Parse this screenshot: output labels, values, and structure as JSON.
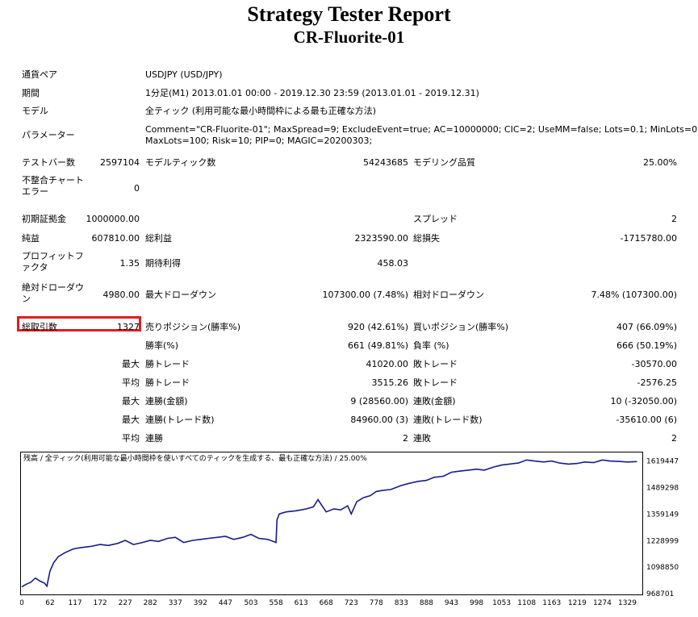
{
  "report": {
    "title": "Strategy Tester Report",
    "subtitle": "CR-Fluorite-01"
  },
  "info": {
    "symbol_label": "通貨ペア",
    "symbol_value": "USDJPY (USD/JPY)",
    "period_label": "期間",
    "period_value": "1分足(M1) 2013.01.01 00:00 - 2019.12.30 23:59 (2013.01.01 - 2019.12.31)",
    "model_label": "モデル",
    "model_value": "全ティック (利用可能な最小時間枠による最も正確な方法)",
    "params_label": "パラメーター",
    "params_line1": "Comment=\"CR-Fluorite-01\"; MaxSpread=9; ExcludeEvent=true; AC=10000000; CIC=2; UseMM=false; Lots=0.1; MinLots=0.01;",
    "params_line2": "MaxLots=100; Risk=10; PIP=0; MAGIC=20200303;"
  },
  "stats": {
    "bars_label": "テストバー数",
    "bars_value": "2597104",
    "ticks_label": "モデルティック数",
    "ticks_value": "54243685",
    "quality_label": "モデリング品質",
    "quality_value": "25.00%",
    "mismatch_label": "不整合チャート\nエラー",
    "mismatch_value": "0",
    "deposit_label": "初期証拠金",
    "deposit_value": "1000000.00",
    "spread_label": "スプレッド",
    "spread_value": "2",
    "net_label": "純益",
    "net_value": "607810.00",
    "gross_profit_label": "総利益",
    "gross_profit_value": "2323590.00",
    "gross_loss_label": "総損失",
    "gross_loss_value": "-1715780.00",
    "pf_label": "プロフィットフ\nァクタ",
    "pf_value": "1.35",
    "expected_label": "期待利得",
    "expected_value": "458.03",
    "abs_dd_label": "絶対ドローダウ\nン",
    "abs_dd_value": "4980.00",
    "max_dd_label": "最大ドローダウン",
    "max_dd_value": "107300.00 (7.48%)",
    "rel_dd_label": "相対ドローダウン",
    "rel_dd_value": "7.48% (107300.00)",
    "total_trades_label": "総取引数",
    "total_trades_value": "1327",
    "short_label": "売りポジション(勝率%)",
    "short_value": "920 (42.61%)",
    "long_label": "買いポジション(勝率%)",
    "long_value": "407 (66.09%)",
    "win_label": "勝率(%)",
    "win_value": "661 (49.81%)",
    "loss_label": "負率 (%)",
    "loss_value": "666 (50.19%)",
    "max_label": "最大",
    "avg_label": "平均",
    "largest_win_label": "勝トレード",
    "largest_win_value": "41020.00",
    "largest_loss_label": "敗トレード",
    "largest_loss_value": "-30570.00",
    "avg_win_label": "勝トレード",
    "avg_win_value": "3515.26",
    "avg_loss_label": "敗トレード",
    "avg_loss_value": "-2576.25",
    "cons_wins_money_label": "連勝(金額)",
    "cons_wins_money_value": "9 (28560.00)",
    "cons_loss_money_label": "連敗(金額)",
    "cons_loss_money_value": "10 (-32050.00)",
    "cons_profit_label": "連勝(トレード数)",
    "cons_profit_value": "84960.00 (3)",
    "cons_lossamt_label": "連敗(トレード数)",
    "cons_lossamt_value": "-35610.00 (6)",
    "avg_cons_win_label": "連勝",
    "avg_cons_win_value": "2",
    "avg_cons_loss_label": "連敗",
    "avg_cons_loss_value": "2"
  },
  "chart_data": {
    "type": "line",
    "title": "残高 / 全ティック(利用可能な最小時間枠を使いすべてのティックを生成する、最も正確な方法) / 25.00%",
    "x_ticks": [
      0,
      62,
      117,
      172,
      227,
      282,
      337,
      392,
      447,
      503,
      558,
      613,
      668,
      723,
      778,
      833,
      888,
      943,
      998,
      1053,
      1108,
      1163,
      1219,
      1274,
      1329
    ],
    "y_ticks": [
      968701,
      1098850,
      1228999,
      1359149,
      1489298,
      1619447
    ],
    "xlim": [
      0,
      1360
    ],
    "ylim": [
      968701,
      1650000
    ],
    "series": [
      {
        "color": "#1a1a8c",
        "x": [
          0,
          10,
          20,
          30,
          40,
          50,
          55,
          62,
          70,
          80,
          95,
          110,
          117,
          130,
          150,
          172,
          190,
          210,
          227,
          245,
          265,
          282,
          300,
          320,
          337,
          355,
          375,
          392,
          410,
          430,
          447,
          465,
          485,
          503,
          520,
          540,
          558,
          560,
          565,
          580,
          600,
          613,
          625,
          640,
          650,
          668,
          685,
          700,
          715,
          723,
          735,
          750,
          765,
          778,
          790,
          810,
          833,
          850,
          870,
          888,
          905,
          925,
          943,
          960,
          980,
          998,
          1015,
          1035,
          1053,
          1070,
          1090,
          1108,
          1125,
          1145,
          1163,
          1180,
          1200,
          1219,
          1235,
          1255,
          1274,
          1290,
          1310,
          1329,
          1350
        ],
        "y": [
          1002000,
          1015000,
          1025000,
          1045000,
          1030000,
          1020000,
          1005000,
          1080000,
          1120000,
          1150000,
          1170000,
          1185000,
          1190000,
          1195000,
          1200000,
          1210000,
          1205000,
          1215000,
          1230000,
          1210000,
          1220000,
          1230000,
          1225000,
          1240000,
          1245000,
          1220000,
          1230000,
          1235000,
          1240000,
          1245000,
          1250000,
          1235000,
          1245000,
          1260000,
          1240000,
          1235000,
          1220000,
          1330000,
          1360000,
          1370000,
          1375000,
          1380000,
          1385000,
          1395000,
          1430000,
          1370000,
          1385000,
          1380000,
          1400000,
          1360000,
          1420000,
          1440000,
          1450000,
          1470000,
          1475000,
          1480000,
          1500000,
          1510000,
          1520000,
          1525000,
          1540000,
          1545000,
          1565000,
          1570000,
          1575000,
          1580000,
          1575000,
          1590000,
          1600000,
          1605000,
          1610000,
          1625000,
          1620000,
          1615000,
          1620000,
          1610000,
          1605000,
          1608000,
          1615000,
          1612000,
          1625000,
          1620000,
          1618000,
          1615000,
          1617000
        ]
      }
    ]
  }
}
